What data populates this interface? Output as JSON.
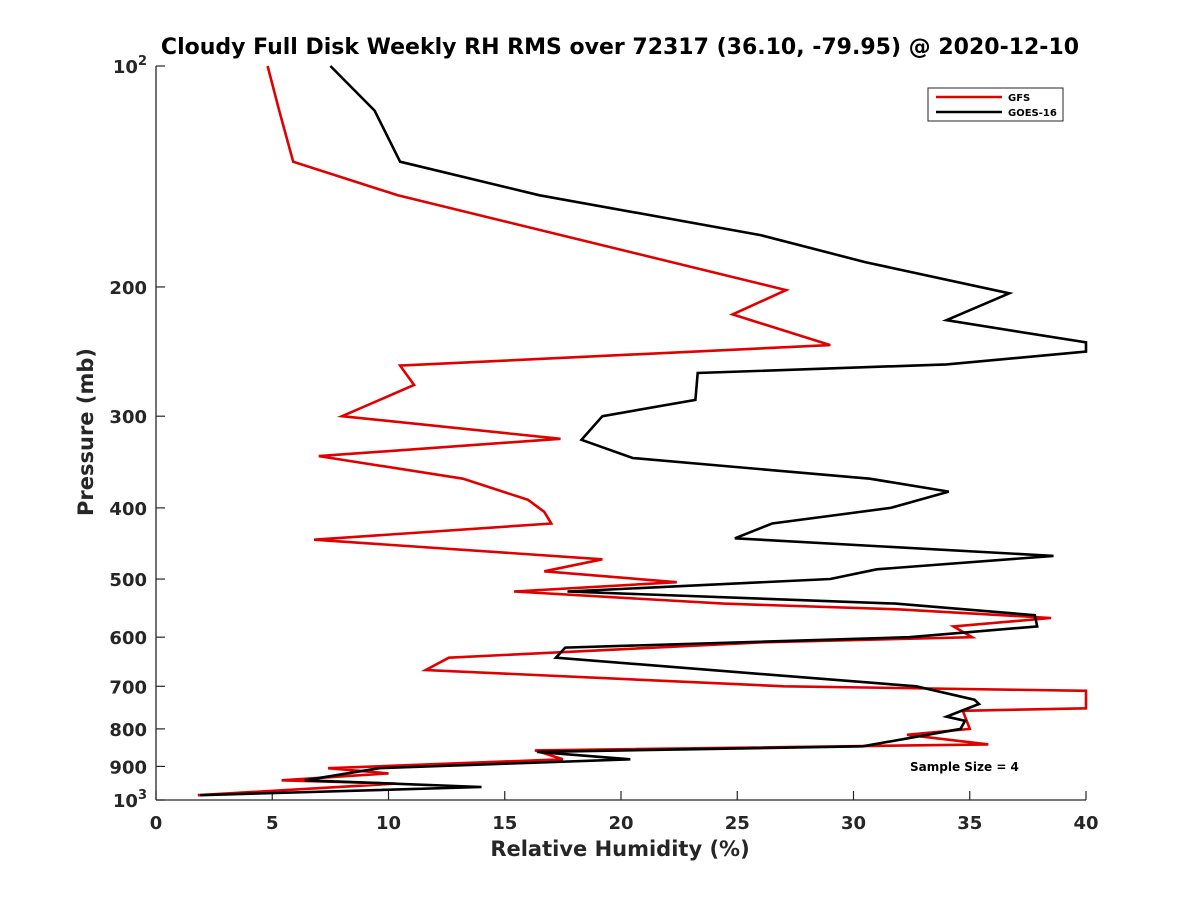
{
  "chart_data": {
    "type": "line",
    "title": "Cloudy Full Disk Weekly RH RMS over 72317 (36.10, -79.95) @ 2020-12-10",
    "xlabel": "Relative Humidity (%)",
    "ylabel": "Pressure (mb)",
    "xlim": [
      0,
      40
    ],
    "ylim": [
      100,
      1000
    ],
    "y_scale": "log",
    "y_reversed": true,
    "x_ticks": [
      "0",
      "5",
      "10",
      "15",
      "20",
      "25",
      "30",
      "35",
      "40"
    ],
    "y_ticks": [
      {
        "value": 100,
        "label": "10",
        "sup": "2"
      },
      {
        "value": 200,
        "label": "200",
        "sup": ""
      },
      {
        "value": 300,
        "label": "300",
        "sup": ""
      },
      {
        "value": 400,
        "label": "400",
        "sup": ""
      },
      {
        "value": 500,
        "label": "500",
        "sup": ""
      },
      {
        "value": 600,
        "label": "600",
        "sup": ""
      },
      {
        "value": 700,
        "label": "700",
        "sup": ""
      },
      {
        "value": 800,
        "label": "800",
        "sup": ""
      },
      {
        "value": 900,
        "label": "900",
        "sup": ""
      },
      {
        "value": 1000,
        "label": "10",
        "sup": "3"
      }
    ],
    "grid": false,
    "legend_position": "top-right",
    "annotation": "Sample Size = 4",
    "series": [
      {
        "name": "GFS",
        "color": "#e00000",
        "points": [
          [
            4.8,
            100
          ],
          [
            5.3,
            115
          ],
          [
            5.9,
            135
          ],
          [
            10.4,
            150
          ],
          [
            27.1,
            202
          ],
          [
            24.8,
            218
          ],
          [
            29.0,
            240
          ],
          [
            10.5,
            256
          ],
          [
            11.1,
            272
          ],
          [
            8.0,
            300
          ],
          [
            17.4,
            322
          ],
          [
            7.0,
            340
          ],
          [
            13.2,
            365
          ],
          [
            16.0,
            390
          ],
          [
            16.7,
            405
          ],
          [
            17.0,
            420
          ],
          [
            6.8,
            442
          ],
          [
            19.2,
            470
          ],
          [
            16.7,
            488
          ],
          [
            22.4,
            505
          ],
          [
            15.4,
            520
          ],
          [
            24.4,
            540
          ],
          [
            32.0,
            550
          ],
          [
            38.5,
            565
          ],
          [
            34.3,
            580
          ],
          [
            35.1,
            600
          ],
          [
            26.0,
            610
          ],
          [
            12.6,
            640
          ],
          [
            11.6,
            665
          ],
          [
            27.0,
            700
          ],
          [
            40.0,
            710
          ],
          [
            40.0,
            750
          ],
          [
            34.7,
            756
          ],
          [
            35.0,
            800
          ],
          [
            32.3,
            815
          ],
          [
            35.8,
            840
          ],
          [
            16.3,
            856
          ],
          [
            17.5,
            880
          ],
          [
            7.4,
            905
          ],
          [
            10.0,
            920
          ],
          [
            5.4,
            940
          ],
          [
            10.3,
            950
          ],
          [
            1.8,
            985
          ]
        ]
      },
      {
        "name": "GOES-16",
        "color": "#000000",
        "points": [
          [
            7.5,
            100
          ],
          [
            9.4,
            115
          ],
          [
            10.5,
            135
          ],
          [
            16.5,
            150
          ],
          [
            26.0,
            170
          ],
          [
            30.5,
            185
          ],
          [
            36.7,
            204
          ],
          [
            34.0,
            222
          ],
          [
            40.0,
            238
          ],
          [
            40.0,
            245
          ],
          [
            34.0,
            255
          ],
          [
            23.3,
            262
          ],
          [
            23.2,
            285
          ],
          [
            19.2,
            300
          ],
          [
            18.3,
            323
          ],
          [
            20.5,
            342
          ],
          [
            30.7,
            365
          ],
          [
            34.1,
            380
          ],
          [
            31.6,
            400
          ],
          [
            26.5,
            420
          ],
          [
            24.9,
            440
          ],
          [
            38.6,
            465
          ],
          [
            31.0,
            485
          ],
          [
            29.0,
            500
          ],
          [
            17.7,
            520
          ],
          [
            31.8,
            540
          ],
          [
            37.8,
            560
          ],
          [
            37.9,
            580
          ],
          [
            32.4,
            600
          ],
          [
            17.6,
            620
          ],
          [
            17.2,
            640
          ],
          [
            32.7,
            700
          ],
          [
            35.2,
            730
          ],
          [
            35.4,
            740
          ],
          [
            34.0,
            770
          ],
          [
            34.8,
            780
          ],
          [
            34.6,
            800
          ],
          [
            30.4,
            845
          ],
          [
            16.4,
            860
          ],
          [
            20.4,
            880
          ],
          [
            9.6,
            905
          ],
          [
            6.4,
            940
          ],
          [
            14.0,
            960
          ],
          [
            1.9,
            985
          ]
        ]
      }
    ]
  }
}
